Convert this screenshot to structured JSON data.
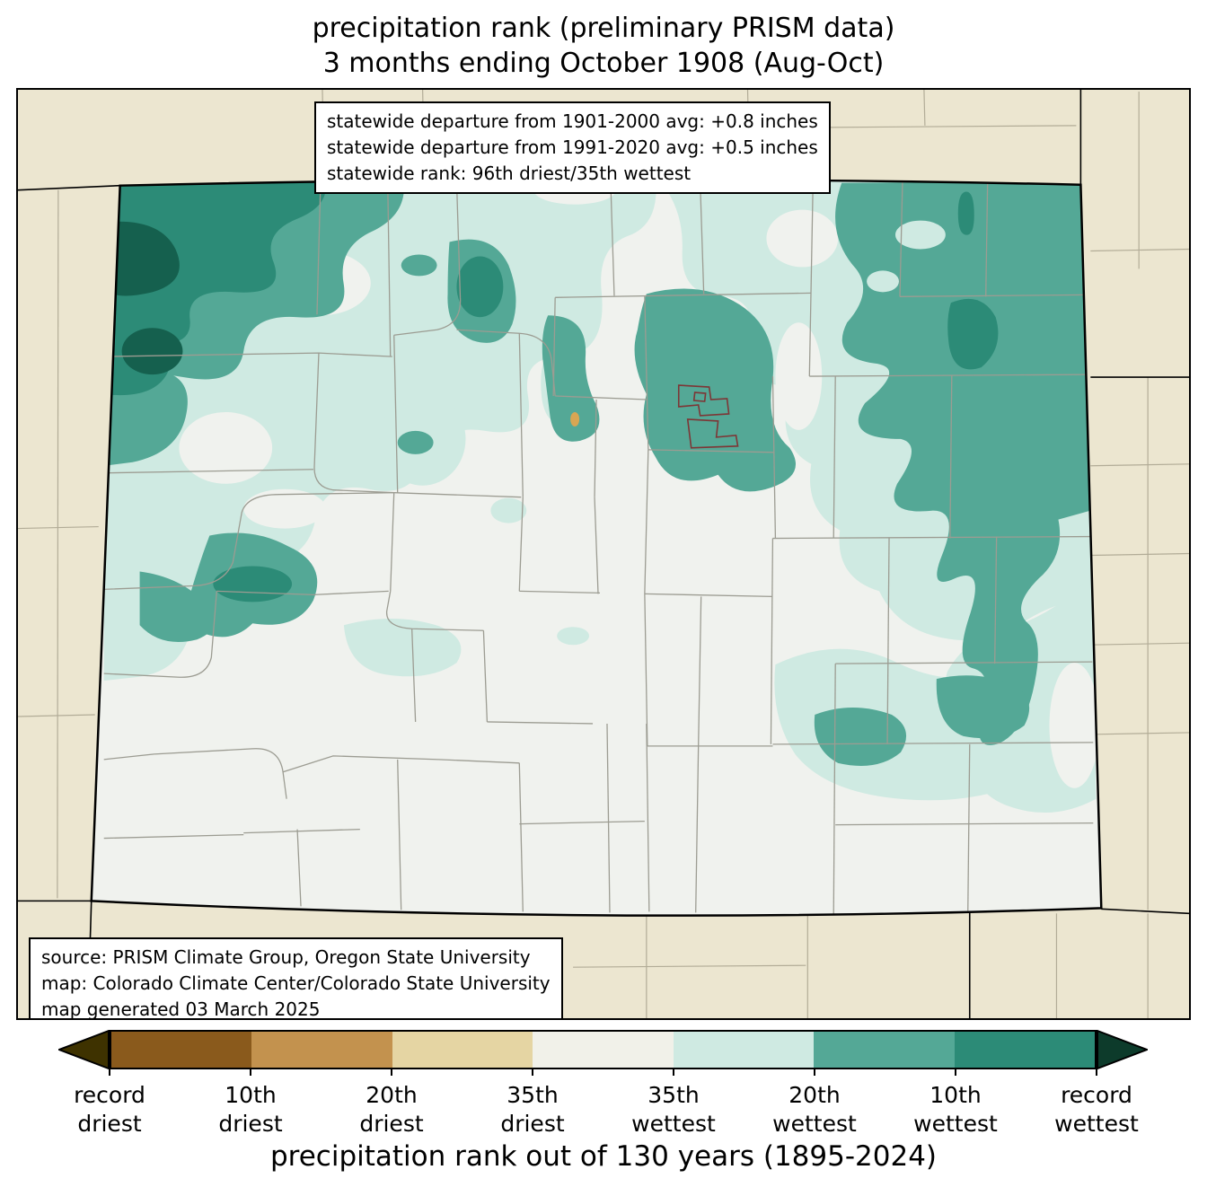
{
  "title": {
    "line1": "precipitation rank (preliminary PRISM data)",
    "line2": "3 months ending October 1908 (Aug-Oct)"
  },
  "stats_box": {
    "line1": "statewide departure from 1901-2000 avg: +0.8 inches",
    "line2": "statewide departure from 1991-2020 avg: +0.5 inches",
    "line3": "statewide rank: 96th driest/35th wettest"
  },
  "source_box": {
    "line1": "source: PRISM Climate Group, Oregon State University",
    "line2": "map: Colorado Climate Center/Colorado State University",
    "line3": "map generated 03 March 2025"
  },
  "colorbar": {
    "caption": "precipitation rank out of 130 years (1895-2024)",
    "labels": [
      {
        "l1": "record",
        "l2": "driest"
      },
      {
        "l1": "10th",
        "l2": "driest"
      },
      {
        "l1": "20th",
        "l2": "driest"
      },
      {
        "l1": "35th",
        "l2": "driest"
      },
      {
        "l1": "35th",
        "l2": "wettest"
      },
      {
        "l1": "20th",
        "l2": "wettest"
      },
      {
        "l1": "10th",
        "l2": "wettest"
      },
      {
        "l1": "record",
        "l2": "wettest"
      }
    ],
    "segments": [
      "#8a5a1c",
      "#c3924e",
      "#e5d5a3",
      "#f1f1e9",
      "#cfeae2",
      "#54a896",
      "#2c8b77"
    ],
    "arrow_left": "#3e3200",
    "arrow_right": "#0d3b2b"
  },
  "map": {
    "colors": {
      "outside": "#ece6d0",
      "neutral": "#f0f2ee",
      "light_teal": "#cfeae2",
      "medium_teal": "#54a896",
      "dark_teal": "#2c8b77",
      "darkest_teal": "#15604e",
      "dry_spot": "#d8a653",
      "county_line": "#9c9c92",
      "neighbor_line": "#b2ac97",
      "metro_line": "#7d3636",
      "state_line": "#000000"
    }
  }
}
